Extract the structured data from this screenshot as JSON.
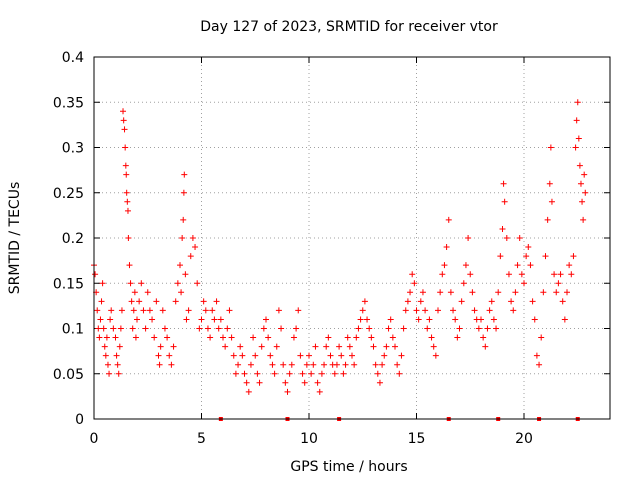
{
  "chart_data": {
    "type": "scatter",
    "title": "Day 127 of 2023, SRMTID for receiver vtor",
    "xlabel": "GPS time / hours",
    "ylabel": "SRMTID / TECUs",
    "xlim": [
      0,
      24
    ],
    "ylim": [
      0,
      0.4
    ],
    "xticks": [
      0,
      5,
      10,
      15,
      20
    ],
    "xtick_labels": [
      "0",
      "5",
      "10",
      "15",
      "20"
    ],
    "yticks": [
      0,
      0.05,
      0.1,
      0.15,
      0.2,
      0.25,
      0.3,
      0.35,
      0.4
    ],
    "ytick_labels": [
      "0",
      "0.05",
      "0.1",
      "0.15",
      "0.2",
      "0.25",
      "0.3",
      "0.35",
      "0.4"
    ],
    "grid": true,
    "marker": "plus",
    "series": [
      {
        "name": "SRMTID",
        "color": "#ff0000",
        "points": [
          [
            0.0,
            0.17
          ],
          [
            0.05,
            0.16
          ],
          [
            0.1,
            0.14
          ],
          [
            0.15,
            0.12
          ],
          [
            0.2,
            0.1
          ],
          [
            0.25,
            0.09
          ],
          [
            0.3,
            0.11
          ],
          [
            0.35,
            0.13
          ],
          [
            0.4,
            0.15
          ],
          [
            0.45,
            0.1
          ],
          [
            0.5,
            0.08
          ],
          [
            0.55,
            0.07
          ],
          [
            0.6,
            0.09
          ],
          [
            0.65,
            0.06
          ],
          [
            0.7,
            0.05
          ],
          [
            0.75,
            0.11
          ],
          [
            0.8,
            0.12
          ],
          [
            0.9,
            0.1
          ],
          [
            1.0,
            0.09
          ],
          [
            1.05,
            0.07
          ],
          [
            1.1,
            0.06
          ],
          [
            1.15,
            0.05
          ],
          [
            1.2,
            0.08
          ],
          [
            1.25,
            0.1
          ],
          [
            1.3,
            0.12
          ],
          [
            1.35,
            0.34
          ],
          [
            1.38,
            0.33
          ],
          [
            1.42,
            0.32
          ],
          [
            1.45,
            0.3
          ],
          [
            1.48,
            0.28
          ],
          [
            1.5,
            0.27
          ],
          [
            1.52,
            0.25
          ],
          [
            1.55,
            0.24
          ],
          [
            1.58,
            0.23
          ],
          [
            1.6,
            0.2
          ],
          [
            1.65,
            0.17
          ],
          [
            1.7,
            0.15
          ],
          [
            1.75,
            0.13
          ],
          [
            1.8,
            0.1
          ],
          [
            1.85,
            0.12
          ],
          [
            1.9,
            0.14
          ],
          [
            1.95,
            0.09
          ],
          [
            2.0,
            0.11
          ],
          [
            2.1,
            0.13
          ],
          [
            2.2,
            0.15
          ],
          [
            2.3,
            0.12
          ],
          [
            2.4,
            0.1
          ],
          [
            2.5,
            0.14
          ],
          [
            2.6,
            0.12
          ],
          [
            2.7,
            0.11
          ],
          [
            2.8,
            0.09
          ],
          [
            2.9,
            0.13
          ],
          [
            3.0,
            0.07
          ],
          [
            3.05,
            0.06
          ],
          [
            3.1,
            0.08
          ],
          [
            3.2,
            0.12
          ],
          [
            3.3,
            0.1
          ],
          [
            3.4,
            0.09
          ],
          [
            3.5,
            0.07
          ],
          [
            3.6,
            0.06
          ],
          [
            3.7,
            0.08
          ],
          [
            3.8,
            0.13
          ],
          [
            3.9,
            0.15
          ],
          [
            4.0,
            0.17
          ],
          [
            4.05,
            0.14
          ],
          [
            4.1,
            0.2
          ],
          [
            4.15,
            0.22
          ],
          [
            4.18,
            0.25
          ],
          [
            4.2,
            0.27
          ],
          [
            4.25,
            0.16
          ],
          [
            4.3,
            0.11
          ],
          [
            4.4,
            0.12
          ],
          [
            4.5,
            0.18
          ],
          [
            4.6,
            0.2
          ],
          [
            4.7,
            0.19
          ],
          [
            4.8,
            0.15
          ],
          [
            4.9,
            0.1
          ],
          [
            5.0,
            0.11
          ],
          [
            5.1,
            0.13
          ],
          [
            5.2,
            0.12
          ],
          [
            5.3,
            0.1
          ],
          [
            5.4,
            0.09
          ],
          [
            5.5,
            0.12
          ],
          [
            5.6,
            0.11
          ],
          [
            5.7,
            0.13
          ],
          [
            5.8,
            0.1
          ],
          [
            5.9,
            0.11
          ],
          [
            6.0,
            0.09
          ],
          [
            6.1,
            0.08
          ],
          [
            6.2,
            0.1
          ],
          [
            6.3,
            0.12
          ],
          [
            6.4,
            0.09
          ],
          [
            6.5,
            0.07
          ],
          [
            6.6,
            0.05
          ],
          [
            6.7,
            0.06
          ],
          [
            6.8,
            0.08
          ],
          [
            6.9,
            0.07
          ],
          [
            7.0,
            0.05
          ],
          [
            7.1,
            0.04
          ],
          [
            7.2,
            0.03
          ],
          [
            7.3,
            0.06
          ],
          [
            7.4,
            0.09
          ],
          [
            7.5,
            0.07
          ],
          [
            7.6,
            0.05
          ],
          [
            7.7,
            0.04
          ],
          [
            7.8,
            0.08
          ],
          [
            7.9,
            0.1
          ],
          [
            8.0,
            0.11
          ],
          [
            8.1,
            0.09
          ],
          [
            8.2,
            0.07
          ],
          [
            8.3,
            0.06
          ],
          [
            8.4,
            0.05
          ],
          [
            8.5,
            0.08
          ],
          [
            8.6,
            0.12
          ],
          [
            8.7,
            0.1
          ],
          [
            8.8,
            0.06
          ],
          [
            8.9,
            0.04
          ],
          [
            9.0,
            0.03
          ],
          [
            9.1,
            0.05
          ],
          [
            9.2,
            0.06
          ],
          [
            9.3,
            0.09
          ],
          [
            9.4,
            0.1
          ],
          [
            9.5,
            0.12
          ],
          [
            9.6,
            0.07
          ],
          [
            9.7,
            0.05
          ],
          [
            9.8,
            0.04
          ],
          [
            9.9,
            0.06
          ],
          [
            10.0,
            0.07
          ],
          [
            10.1,
            0.05
          ],
          [
            10.2,
            0.06
          ],
          [
            10.3,
            0.08
          ],
          [
            10.4,
            0.04
          ],
          [
            10.5,
            0.03
          ],
          [
            10.6,
            0.05
          ],
          [
            10.7,
            0.06
          ],
          [
            10.8,
            0.08
          ],
          [
            10.9,
            0.09
          ],
          [
            11.0,
            0.07
          ],
          [
            11.1,
            0.06
          ],
          [
            11.2,
            0.05
          ],
          [
            11.3,
            0.06
          ],
          [
            11.4,
            0.08
          ],
          [
            11.5,
            0.07
          ],
          [
            11.6,
            0.05
          ],
          [
            11.7,
            0.06
          ],
          [
            11.8,
            0.09
          ],
          [
            11.9,
            0.08
          ],
          [
            12.0,
            0.07
          ],
          [
            12.1,
            0.06
          ],
          [
            12.2,
            0.09
          ],
          [
            12.3,
            0.1
          ],
          [
            12.4,
            0.11
          ],
          [
            12.5,
            0.12
          ],
          [
            12.6,
            0.13
          ],
          [
            12.7,
            0.11
          ],
          [
            12.8,
            0.1
          ],
          [
            12.9,
            0.09
          ],
          [
            13.0,
            0.08
          ],
          [
            13.1,
            0.06
          ],
          [
            13.2,
            0.05
          ],
          [
            13.3,
            0.04
          ],
          [
            13.4,
            0.06
          ],
          [
            13.5,
            0.07
          ],
          [
            13.6,
            0.08
          ],
          [
            13.7,
            0.1
          ],
          [
            13.8,
            0.11
          ],
          [
            13.9,
            0.09
          ],
          [
            14.0,
            0.08
          ],
          [
            14.1,
            0.06
          ],
          [
            14.2,
            0.05
          ],
          [
            14.3,
            0.07
          ],
          [
            14.4,
            0.1
          ],
          [
            14.5,
            0.12
          ],
          [
            14.6,
            0.13
          ],
          [
            14.7,
            0.14
          ],
          [
            14.8,
            0.16
          ],
          [
            14.9,
            0.15
          ],
          [
            15.0,
            0.12
          ],
          [
            15.1,
            0.11
          ],
          [
            15.2,
            0.13
          ],
          [
            15.3,
            0.14
          ],
          [
            15.4,
            0.12
          ],
          [
            15.5,
            0.1
          ],
          [
            15.6,
            0.11
          ],
          [
            15.7,
            0.09
          ],
          [
            15.8,
            0.08
          ],
          [
            15.9,
            0.07
          ],
          [
            16.0,
            0.12
          ],
          [
            16.1,
            0.14
          ],
          [
            16.2,
            0.16
          ],
          [
            16.3,
            0.17
          ],
          [
            16.4,
            0.19
          ],
          [
            16.5,
            0.22
          ],
          [
            16.6,
            0.14
          ],
          [
            16.7,
            0.12
          ],
          [
            16.8,
            0.11
          ],
          [
            16.9,
            0.09
          ],
          [
            17.0,
            0.1
          ],
          [
            17.1,
            0.13
          ],
          [
            17.2,
            0.15
          ],
          [
            17.3,
            0.17
          ],
          [
            17.4,
            0.2
          ],
          [
            17.5,
            0.16
          ],
          [
            17.6,
            0.14
          ],
          [
            17.7,
            0.12
          ],
          [
            17.8,
            0.11
          ],
          [
            17.9,
            0.1
          ],
          [
            18.0,
            0.11
          ],
          [
            18.1,
            0.09
          ],
          [
            18.2,
            0.08
          ],
          [
            18.3,
            0.1
          ],
          [
            18.4,
            0.12
          ],
          [
            18.5,
            0.13
          ],
          [
            18.6,
            0.11
          ],
          [
            18.7,
            0.1
          ],
          [
            18.8,
            0.14
          ],
          [
            18.9,
            0.18
          ],
          [
            19.0,
            0.21
          ],
          [
            19.05,
            0.26
          ],
          [
            19.1,
            0.24
          ],
          [
            19.2,
            0.2
          ],
          [
            19.3,
            0.16
          ],
          [
            19.4,
            0.13
          ],
          [
            19.5,
            0.12
          ],
          [
            19.6,
            0.14
          ],
          [
            19.7,
            0.17
          ],
          [
            19.8,
            0.2
          ],
          [
            19.9,
            0.16
          ],
          [
            20.0,
            0.15
          ],
          [
            20.1,
            0.18
          ],
          [
            20.2,
            0.19
          ],
          [
            20.3,
            0.17
          ],
          [
            20.4,
            0.13
          ],
          [
            20.5,
            0.11
          ],
          [
            20.6,
            0.07
          ],
          [
            20.7,
            0.06
          ],
          [
            20.8,
            0.09
          ],
          [
            20.9,
            0.14
          ],
          [
            21.0,
            0.18
          ],
          [
            21.1,
            0.22
          ],
          [
            21.2,
            0.26
          ],
          [
            21.25,
            0.3
          ],
          [
            21.3,
            0.24
          ],
          [
            21.4,
            0.16
          ],
          [
            21.5,
            0.14
          ],
          [
            21.6,
            0.15
          ],
          [
            21.7,
            0.16
          ],
          [
            21.8,
            0.13
          ],
          [
            21.9,
            0.11
          ],
          [
            22.0,
            0.14
          ],
          [
            22.1,
            0.17
          ],
          [
            22.2,
            0.16
          ],
          [
            22.3,
            0.18
          ],
          [
            22.4,
            0.3
          ],
          [
            22.45,
            0.33
          ],
          [
            22.5,
            0.35
          ],
          [
            22.55,
            0.31
          ],
          [
            22.6,
            0.28
          ],
          [
            22.65,
            0.26
          ],
          [
            22.7,
            0.24
          ],
          [
            22.75,
            0.22
          ],
          [
            22.8,
            0.27
          ],
          [
            22.85,
            0.25
          ]
        ]
      }
    ],
    "zero_markers_x": [
      5.9,
      9.0,
      11.4,
      16.5,
      18.8,
      20.7,
      22.5
    ]
  }
}
